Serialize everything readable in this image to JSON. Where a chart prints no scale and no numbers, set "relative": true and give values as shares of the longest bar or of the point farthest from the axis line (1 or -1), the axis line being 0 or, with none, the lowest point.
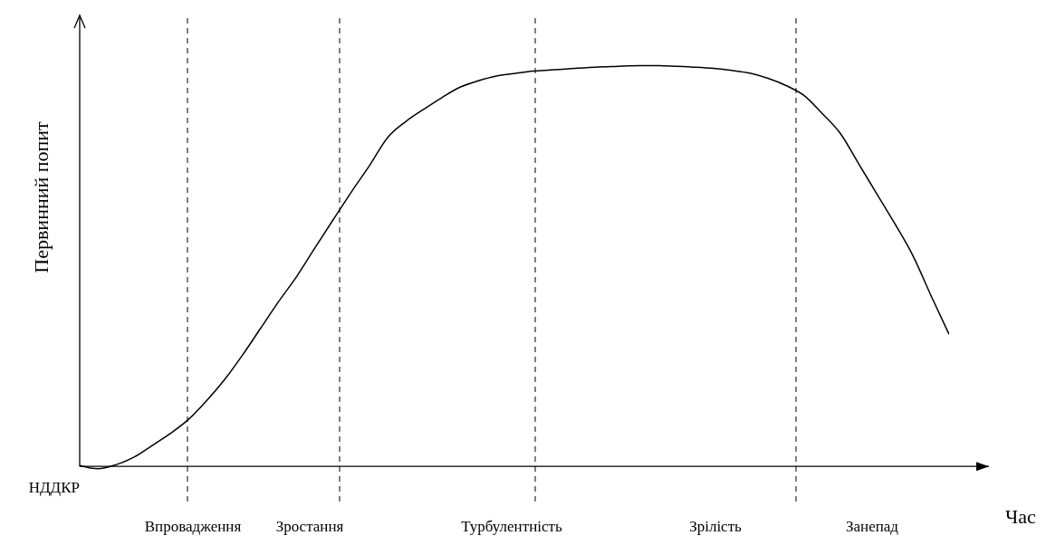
{
  "chart_data": {
    "type": "line",
    "relative": true,
    "xlabel": "Час",
    "ylabel": "Первинний попит",
    "color": "#000000",
    "categories": [
      null,
      null,
      null,
      null,
      null,
      null,
      null,
      null,
      null,
      null,
      null,
      null,
      null,
      null,
      null,
      null,
      null,
      null,
      null,
      null,
      null,
      null,
      null,
      null,
      null,
      null,
      null,
      null,
      null,
      null,
      null,
      null,
      null,
      null,
      null,
      null,
      null,
      null,
      null,
      null,
      null,
      null,
      null,
      null,
      null,
      null,
      null,
      null,
      null
    ],
    "values": [
      0,
      -0.008,
      0.002,
      0.021,
      0.05,
      0.08,
      0.115,
      0.162,
      0.215,
      0.277,
      0.344,
      0.411,
      0.474,
      0.545,
      0.615,
      0.684,
      0.75,
      0.82,
      0.86,
      0.891,
      0.92,
      0.946,
      0.962,
      0.974,
      0.98,
      0.986,
      0.989,
      0.992,
      0.995,
      0.997,
      0.999,
      1.0,
      1.0,
      0.998,
      0.996,
      0.993,
      0.988,
      0.981,
      0.968,
      0.95,
      0.925,
      0.88,
      0.83,
      0.755,
      0.68,
      0.605,
      0.525,
      0.425,
      0.328
    ],
    "annotations": [
      "НДДКР",
      "Впровадження",
      "Зростання",
      "Турбулентність",
      "Зрілість",
      "Занепад"
    ]
  }
}
